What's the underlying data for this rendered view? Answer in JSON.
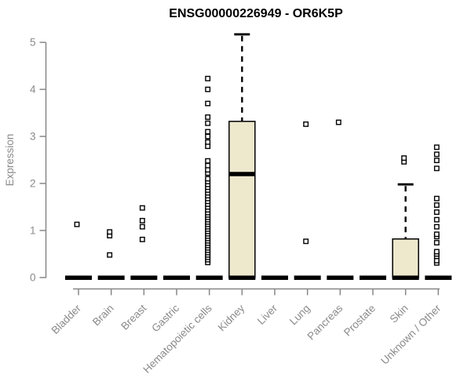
{
  "chart_data": {
    "type": "boxplot",
    "title": "ENSG00000226949 - OR6K5P",
    "ylabel": "Expression",
    "xlabel": "",
    "ylim": [
      0,
      5
    ],
    "yticks": [
      0,
      1,
      2,
      3,
      4,
      5
    ],
    "grid": false,
    "legend": "none",
    "colors": {
      "box_fill": "#EEE8CD",
      "box_stroke": "#000000",
      "axis_line": "#878787",
      "axis_text": "#8a8a8a",
      "title_text": "#000000",
      "background": "#ffffff"
    },
    "categories": [
      "Bladder",
      "Brain",
      "Breast",
      "Gastric",
      "Hematopoietic cells",
      "Kidney",
      "Liver",
      "Lung",
      "Pancreas",
      "Prostate",
      "Skin",
      "Unknown / Other"
    ],
    "series": [
      {
        "category": "Bladder",
        "q1": 0,
        "median": 0,
        "q3": 0,
        "whisker_low": 0,
        "whisker_high": 0,
        "outliers": [
          1.13
        ]
      },
      {
        "category": "Brain",
        "q1": 0,
        "median": 0,
        "q3": 0,
        "whisker_low": 0,
        "whisker_high": 0,
        "outliers": [
          0.48,
          0.89,
          0.97
        ]
      },
      {
        "category": "Breast",
        "q1": 0,
        "median": 0,
        "q3": 0,
        "whisker_low": 0,
        "whisker_high": 0,
        "outliers": [
          0.81,
          1.08,
          1.21,
          1.48
        ]
      },
      {
        "category": "Gastric",
        "q1": 0,
        "median": 0,
        "q3": 0,
        "whisker_low": 0,
        "whisker_high": 0,
        "outliers": []
      },
      {
        "category": "Hematopoietic cells",
        "q1": 0,
        "median": 0,
        "q3": 0,
        "whisker_low": 0,
        "whisker_high": 0,
        "outliers": [
          0.32,
          0.38,
          0.43,
          0.48,
          0.53,
          0.58,
          0.63,
          0.68,
          0.73,
          0.78,
          0.83,
          0.88,
          0.93,
          0.98,
          1.03,
          1.08,
          1.13,
          1.18,
          1.23,
          1.28,
          1.33,
          1.38,
          1.44,
          1.5,
          1.56,
          1.62,
          1.68,
          1.74,
          1.8,
          1.86,
          1.92,
          1.98,
          2.04,
          2.1,
          2.22,
          2.29,
          2.38,
          2.48,
          2.79,
          2.88,
          3.0,
          3.1,
          3.28,
          3.41,
          3.7,
          4.0,
          4.23
        ]
      },
      {
        "category": "Kidney",
        "q1": 0,
        "median": 2.2,
        "q3": 3.32,
        "whisker_low": 0,
        "whisker_high": 5.17,
        "outliers": []
      },
      {
        "category": "Liver",
        "q1": 0,
        "median": 0,
        "q3": 0,
        "whisker_low": 0,
        "whisker_high": 0,
        "outliers": []
      },
      {
        "category": "Lung",
        "q1": 0,
        "median": 0,
        "q3": 0,
        "whisker_low": 0,
        "whisker_high": 0,
        "outliers": [
          0.77,
          3.26
        ]
      },
      {
        "category": "Pancreas",
        "q1": 0,
        "median": 0,
        "q3": 0,
        "whisker_low": 0,
        "whisker_high": 0,
        "outliers": [
          3.3
        ]
      },
      {
        "category": "Prostate",
        "q1": 0,
        "median": 0,
        "q3": 0,
        "whisker_low": 0,
        "whisker_high": 0,
        "outliers": []
      },
      {
        "category": "Skin",
        "q1": 0,
        "median": 0,
        "q3": 0.82,
        "whisker_low": 0,
        "whisker_high": 1.98,
        "outliers": [
          2.46,
          2.54
        ]
      },
      {
        "category": "Unknown / Other",
        "q1": 0,
        "median": 0,
        "q3": 0,
        "whisker_low": 0,
        "whisker_high": 0,
        "outliers": [
          0.31,
          0.36,
          0.45,
          0.5,
          0.55,
          0.74,
          0.87,
          0.92,
          1.08,
          1.23,
          1.39,
          1.54,
          1.68,
          2.32,
          2.49,
          2.62,
          2.77
        ]
      }
    ]
  }
}
